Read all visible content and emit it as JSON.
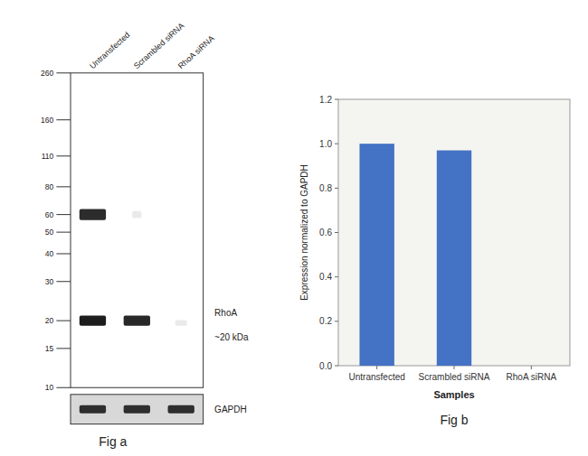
{
  "chart_data": {
    "type": "bar",
    "categories": [
      "Untransfected",
      "Scrambled siRNA",
      "RhoA siRNA"
    ],
    "values": [
      1.0,
      0.97,
      0.0
    ],
    "color": "#4472c4",
    "xlabel": "Samples",
    "ylabel": "Expression normalized to GAPDH",
    "ylim": [
      0,
      1.2
    ],
    "yticks": [
      {
        "value": 0,
        "label": "0.0"
      },
      0.2,
      0.4,
      0.6,
      0.8,
      {
        "value": 1.0,
        "label": "1.0"
      },
      1.2
    ],
    "grid": false,
    "annotations": [
      "Fig a",
      "Fig b",
      "Untransfected",
      "Scrambled siRNA",
      "RhoA siRNA",
      "260",
      "160",
      "110",
      "80",
      "60",
      "50",
      "40",
      "30",
      "20",
      "15",
      "10",
      "RhoA",
      "~20 kDa",
      "GAPDH"
    ]
  }
}
